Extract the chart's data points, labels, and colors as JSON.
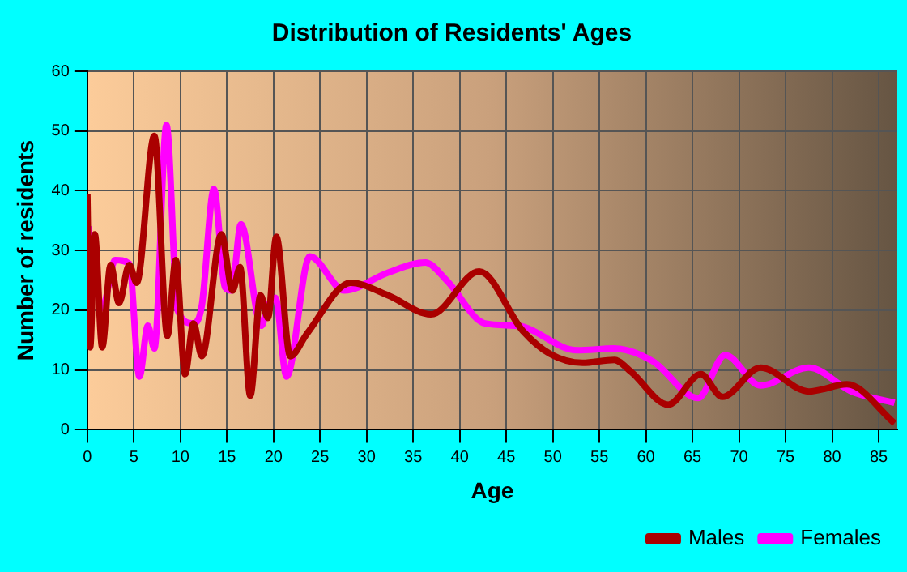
{
  "chart_data": {
    "type": "line",
    "title": "Distribution of Residents' Ages",
    "xlabel": "Age",
    "ylabel": "Number of residents",
    "xlim": [
      0,
      87
    ],
    "xticks": [
      0,
      5,
      10,
      15,
      20,
      25,
      30,
      35,
      40,
      45,
      50,
      55,
      60,
      65,
      70,
      75,
      80,
      85
    ],
    "ylim": [
      0,
      60
    ],
    "yticks": [
      0,
      10,
      20,
      30,
      40,
      50,
      60
    ],
    "grid": true,
    "legend": "bottom right",
    "marker": "none",
    "line_style": "solid",
    "series": [
      {
        "name": "Males",
        "color": "#aa0000",
        "x": [
          0,
          0.3,
          0.8,
          1.6,
          2.5,
          3.4,
          4.5,
          5.3,
          7.2,
          8.6,
          9.5,
          10.5,
          11.4,
          12.3,
          14.4,
          15.6,
          16.4,
          17.5,
          18.6,
          19.4,
          20.3,
          21.8,
          23.6,
          28.3,
          32.3,
          36.9,
          42.1,
          46.8,
          49.7,
          53.2,
          56.6,
          58.4,
          62.4,
          65.9,
          68.2,
          72.3,
          77.5,
          81.6,
          86.7
        ],
        "values": [
          39.5,
          13.8,
          32.7,
          13.8,
          27.6,
          21.2,
          27.6,
          24.6,
          49.2,
          15.7,
          28.4,
          9.3,
          17.8,
          12.3,
          32.7,
          23.3,
          27.2,
          5.7,
          22.5,
          18.7,
          32.3,
          12.3,
          16.1,
          24.6,
          22.5,
          19.3,
          26.5,
          16.5,
          12.7,
          11.2,
          11.7,
          9.7,
          4.2,
          9.3,
          5.5,
          10.4,
          6.4,
          7.6,
          1.1
        ]
      },
      {
        "name": "Females",
        "color": "#ff00ff",
        "x": [
          0.1,
          1.6,
          3,
          4.5,
          5.6,
          6.5,
          7.2,
          8.5,
          9.7,
          11.4,
          12.3,
          13.6,
          14.8,
          15.5,
          16.5,
          18.7,
          19.4,
          20.2,
          21.4,
          23.9,
          27.6,
          32.3,
          36.3,
          38.6,
          42.7,
          46.2,
          52.6,
          56.6,
          60.7,
          65.6,
          68.5,
          72.3,
          77.5,
          82.1,
          86.7
        ],
        "values": [
          34,
          20.4,
          28.4,
          27.8,
          8.9,
          17.4,
          13.6,
          51,
          20,
          17.8,
          20.8,
          40.3,
          23.8,
          23.3,
          34.4,
          17.4,
          20.8,
          22.1,
          8.9,
          29,
          23.3,
          26.3,
          28,
          25,
          17.8,
          17.4,
          13.3,
          13.6,
          11.5,
          5.3,
          12.5,
          7.4,
          10.4,
          6.4,
          4.5
        ]
      }
    ]
  }
}
